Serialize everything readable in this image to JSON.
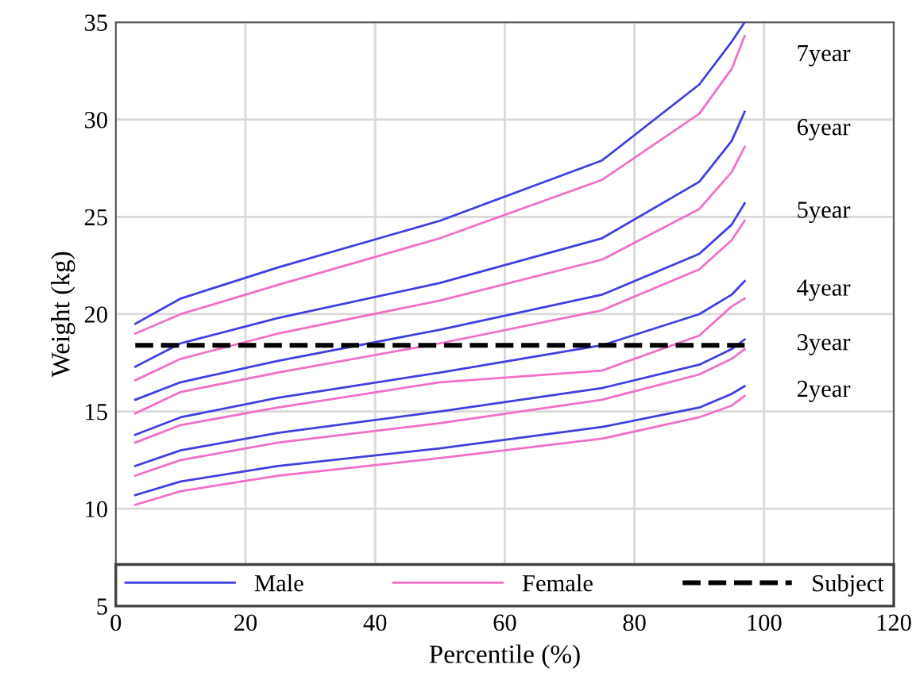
{
  "chart_data": {
    "type": "line",
    "xlabel": "Percentile (%)",
    "ylabel": "Weight (kg)",
    "x": [
      3,
      10,
      25,
      50,
      75,
      90,
      95,
      97
    ],
    "xlim": [
      0,
      120
    ],
    "xticks": [
      0,
      20,
      40,
      60,
      80,
      100,
      120
    ],
    "ylim": [
      5,
      35
    ],
    "yticks": [
      5,
      10,
      15,
      20,
      25,
      30,
      35
    ],
    "grid": true,
    "legend": "bottom",
    "marker": "none",
    "line_style": "solid",
    "series": [
      {
        "name": "Male",
        "color": "#4040e0",
        "values": [
          19.5,
          20.8,
          22.4,
          24.8,
          27.9,
          31.8,
          34.0,
          35.0
        ]
      },
      {
        "name": "Female",
        "color": "#f070c8",
        "values": [
          19.0,
          20.0,
          21.5,
          23.9,
          26.9,
          30.3,
          32.6,
          34.3
        ]
      },
      {
        "color": "#4040e0",
        "values": [
          17.3,
          18.5,
          19.8,
          21.6,
          23.9,
          26.8,
          28.9,
          30.4
        ]
      },
      {
        "color": "#f070c8",
        "values": [
          16.6,
          17.7,
          19.0,
          20.7,
          22.8,
          25.4,
          27.3,
          28.6
        ]
      },
      {
        "color": "#4040e0",
        "values": [
          15.6,
          16.5,
          17.6,
          19.2,
          21.0,
          23.1,
          24.6,
          25.7
        ]
      },
      {
        "color": "#f070c8",
        "values": [
          14.9,
          16.0,
          17.0,
          18.5,
          20.2,
          22.3,
          23.8,
          24.8
        ]
      },
      {
        "color": "#4040e0",
        "values": [
          13.8,
          14.7,
          15.7,
          17.0,
          18.4,
          20.0,
          21.0,
          21.7
        ]
      },
      {
        "color": "#f070c8",
        "values": [
          13.4,
          14.3,
          15.2,
          16.5,
          17.1,
          18.9,
          20.4,
          20.8
        ]
      },
      {
        "color": "#4040e0",
        "values": [
          12.2,
          13.0,
          13.9,
          15.0,
          16.2,
          17.4,
          18.2,
          18.7
        ]
      },
      {
        "color": "#f070c8",
        "values": [
          11.7,
          12.5,
          13.4,
          14.4,
          15.6,
          16.9,
          17.7,
          18.2
        ]
      },
      {
        "color": "#4040e0",
        "values": [
          10.7,
          11.4,
          12.2,
          13.1,
          14.2,
          15.2,
          15.9,
          16.3
        ]
      },
      {
        "color": "#f070c8",
        "values": [
          10.2,
          10.9,
          11.7,
          12.6,
          13.6,
          14.7,
          15.3,
          15.8
        ]
      },
      {
        "name": "Subject",
        "color": "#000000",
        "line_style": "dashed",
        "x": [
          3,
          97
        ],
        "values": [
          18.4,
          18.4
        ]
      }
    ],
    "annotations": [
      "7year",
      "6year",
      "5year",
      "4year",
      "3year",
      "2year"
    ]
  }
}
